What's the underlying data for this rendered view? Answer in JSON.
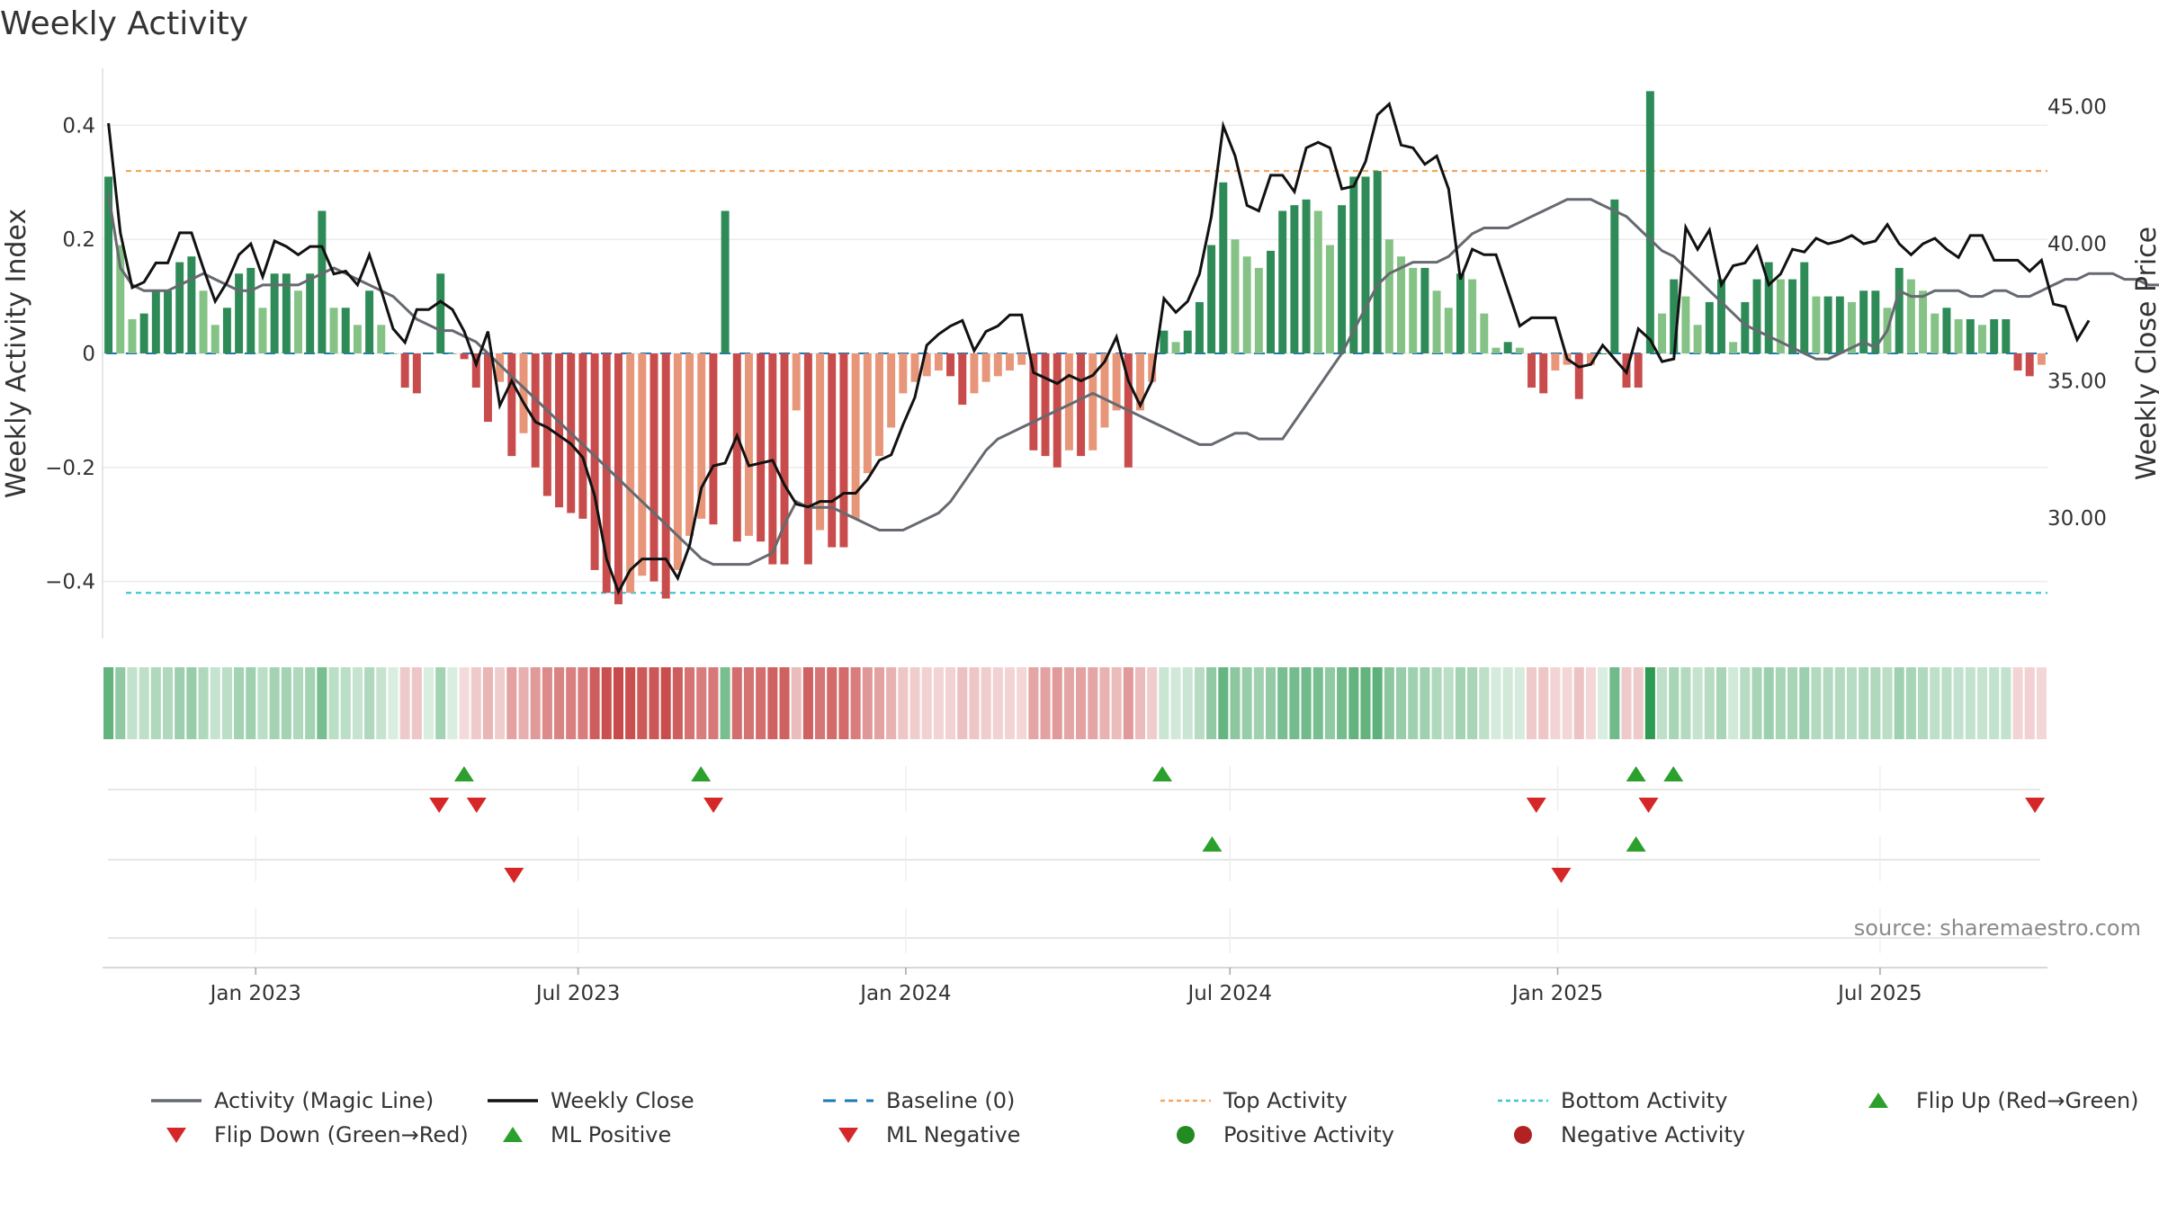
{
  "title": "Weekly Activity",
  "source": "source: sharemaestro.com",
  "chart_data": {
    "type": "bar",
    "title": "Weekly Activity",
    "ylabel": "Weekly Activity Index",
    "y2label": "Weekly Close Price",
    "ylim": [
      -0.5,
      0.5
    ],
    "y2lim": [
      25.6,
      46.4
    ],
    "yticks": [
      0.4,
      0.2,
      0,
      -0.2,
      -0.4
    ],
    "ytick_labels": [
      "0.4",
      "0.2",
      "0",
      "−0.2",
      "−0.4"
    ],
    "y2ticks": [
      45,
      40,
      35,
      30
    ],
    "y2tick_labels": [
      "45.00",
      "40.00",
      "35.00",
      "30.00"
    ],
    "x_start": "2022-10-07",
    "x_end": "2025-10-03",
    "xticks": [
      "2023-01-01",
      "2023-07-01",
      "2024-01-01",
      "2024-07-01",
      "2025-01-01",
      "2025-07-01"
    ],
    "xtick_labels": [
      "Jan 2023",
      "Jul 2023",
      "Jan 2024",
      "Jul 2024",
      "Jan 2025",
      "Jul 2025"
    ],
    "top_activity": 0.32,
    "bottom_activity": -0.42,
    "grid": true,
    "legend_position": "bottom",
    "series": [
      {
        "name": "Activity (Magic Line)",
        "color": "#666a70",
        "values": [
          0.28,
          0.15,
          0.12,
          0.11,
          0.11,
          0.11,
          0.12,
          0.13,
          0.14,
          0.13,
          0.12,
          0.11,
          0.11,
          0.12,
          0.12,
          0.12,
          0.12,
          0.13,
          0.14,
          0.15,
          0.14,
          0.13,
          0.12,
          0.11,
          0.1,
          0.08,
          0.06,
          0.05,
          0.04,
          0.04,
          0.03,
          0.02,
          0.0,
          -0.02,
          -0.04,
          -0.06,
          -0.08,
          -0.1,
          -0.12,
          -0.14,
          -0.16,
          -0.18,
          -0.2,
          -0.22,
          -0.24,
          -0.26,
          -0.28,
          -0.3,
          -0.32,
          -0.34,
          -0.36,
          -0.37,
          -0.37,
          -0.37,
          -0.37,
          -0.36,
          -0.35,
          -0.3,
          -0.26,
          -0.27,
          -0.27,
          -0.27,
          -0.28,
          -0.29,
          -0.3,
          -0.31,
          -0.31,
          -0.31,
          -0.3,
          -0.29,
          -0.28,
          -0.26,
          -0.23,
          -0.2,
          -0.17,
          -0.15,
          -0.14,
          -0.13,
          -0.12,
          -0.11,
          -0.1,
          -0.09,
          -0.08,
          -0.07,
          -0.08,
          -0.09,
          -0.1,
          -0.11,
          -0.12,
          -0.13,
          -0.14,
          -0.15,
          -0.16,
          -0.16,
          -0.15,
          -0.14,
          -0.14,
          -0.15,
          -0.15,
          -0.15,
          -0.12,
          -0.09,
          -0.06,
          -0.03,
          0.0,
          0.04,
          0.08,
          0.12,
          0.14,
          0.15,
          0.16,
          0.16,
          0.16,
          0.17,
          0.19,
          0.21,
          0.22,
          0.22,
          0.22,
          0.23,
          0.24,
          0.25,
          0.26,
          0.27,
          0.27,
          0.27,
          0.26,
          0.25,
          0.24,
          0.22,
          0.2,
          0.18,
          0.17,
          0.15,
          0.13,
          0.11,
          0.09,
          0.07,
          0.05,
          0.04,
          0.03,
          0.02,
          0.01,
          0.0,
          -0.01,
          -0.01,
          0.0,
          0.01,
          0.02,
          0.01,
          0.04,
          0.11,
          0.1,
          0.1,
          0.11,
          0.11,
          0.11,
          0.1,
          0.1,
          0.11,
          0.11,
          0.1,
          0.1,
          0.11,
          0.12,
          0.13,
          0.13,
          0.14,
          0.14,
          0.14,
          0.13,
          0.13,
          0.12,
          0.12,
          0.12,
          0.12,
          0.11,
          0.1,
          0.09,
          0.08,
          0.07,
          0.07,
          0.06,
          0.04,
          0.03,
          0.02
        ]
      },
      {
        "name": "Weekly Close",
        "color": "#111111",
        "values": [
          44.4,
          40.4,
          38.4,
          38.6,
          39.3,
          39.3,
          40.4,
          40.4,
          39.1,
          37.9,
          38.6,
          39.6,
          40.0,
          38.8,
          40.1,
          39.9,
          39.6,
          39.9,
          39.9,
          38.9,
          39.0,
          38.5,
          39.6,
          38.3,
          36.9,
          36.4,
          37.6,
          37.6,
          37.9,
          37.6,
          36.8,
          35.6,
          36.8,
          34.1,
          35.0,
          34.2,
          33.5,
          33.3,
          33.0,
          32.7,
          32.2,
          30.8,
          28.5,
          27.3,
          28.1,
          28.5,
          28.5,
          28.5,
          27.8,
          29.0,
          31.1,
          31.9,
          32.0,
          33.0,
          31.9,
          32.0,
          32.1,
          31.2,
          30.5,
          30.4,
          30.6,
          30.6,
          30.9,
          30.9,
          31.4,
          32.1,
          32.3,
          33.4,
          34.4,
          36.3,
          36.7,
          37.0,
          37.2,
          36.1,
          36.8,
          37.0,
          37.4,
          37.4,
          35.3,
          35.1,
          34.9,
          35.2,
          35.0,
          35.2,
          35.7,
          36.6,
          35.0,
          34.1,
          35.0,
          38.0,
          37.5,
          37.9,
          38.9,
          41.0,
          44.3,
          43.2,
          41.4,
          41.2,
          42.5,
          42.5,
          41.9,
          43.5,
          43.7,
          43.5,
          42.0,
          42.1,
          43.0,
          44.7,
          45.1,
          43.6,
          43.5,
          42.9,
          43.2,
          42.0,
          38.7,
          39.8,
          39.6,
          39.6,
          38.3,
          37.0,
          37.3,
          37.3,
          37.3,
          35.8,
          35.5,
          35.6,
          36.3,
          35.8,
          35.3,
          36.9,
          36.5,
          35.7,
          35.8,
          40.6,
          39.8,
          40.5,
          38.5,
          39.2,
          39.3,
          39.9,
          38.5,
          38.9,
          39.8,
          39.7,
          40.2,
          40.0,
          40.1,
          40.3,
          40.0,
          40.1,
          40.7,
          40.0,
          39.6,
          40.0,
          40.2,
          39.8,
          39.5,
          40.3,
          40.3,
          39.4,
          39.4,
          39.4,
          39.0,
          39.4,
          37.8,
          37.7,
          36.5,
          37.2
        ]
      },
      {
        "name": "Baseline (0)",
        "color": "#1f77b4",
        "values": [
          0
        ]
      },
      {
        "name": "Top Activity",
        "color": "#f0a868",
        "values": [
          0.32
        ]
      },
      {
        "name": "Bottom Activity",
        "color": "#3cc7d3",
        "values": [
          -0.42
        ]
      }
    ],
    "bars": {
      "name": "Weekly Activity Index",
      "values": [
        0.31,
        0.19,
        0.06,
        0.07,
        0.11,
        0.11,
        0.16,
        0.17,
        0.11,
        0.05,
        0.08,
        0.14,
        0.15,
        0.08,
        0.14,
        0.14,
        0.11,
        0.14,
        0.25,
        0.08,
        0.08,
        0.05,
        0.11,
        0.05,
        0.0,
        -0.06,
        -0.07,
        0.0,
        0.14,
        0.0,
        -0.01,
        -0.06,
        -0.12,
        -0.05,
        -0.18,
        -0.14,
        -0.2,
        -0.25,
        -0.27,
        -0.28,
        -0.29,
        -0.38,
        -0.42,
        -0.44,
        -0.42,
        -0.39,
        -0.4,
        -0.43,
        -0.38,
        -0.32,
        -0.29,
        -0.3,
        0.25,
        -0.33,
        -0.32,
        -0.33,
        -0.37,
        -0.37,
        -0.1,
        -0.37,
        -0.31,
        -0.34,
        -0.34,
        -0.29,
        -0.21,
        -0.18,
        -0.13,
        -0.07,
        -0.05,
        -0.04,
        -0.03,
        -0.04,
        -0.09,
        -0.07,
        -0.05,
        -0.04,
        -0.03,
        -0.02,
        -0.17,
        -0.18,
        -0.2,
        -0.17,
        -0.18,
        -0.17,
        -0.13,
        -0.1,
        -0.2,
        -0.1,
        -0.05,
        0.04,
        0.02,
        0.04,
        0.09,
        0.19,
        0.3,
        0.2,
        0.17,
        0.15,
        0.18,
        0.25,
        0.26,
        0.27,
        0.25,
        0.19,
        0.26,
        0.31,
        0.31,
        0.32,
        0.2,
        0.17,
        0.15,
        0.15,
        0.11,
        0.08,
        0.14,
        0.13,
        0.07,
        0.01,
        0.02,
        0.01,
        -0.06,
        -0.07,
        -0.03,
        -0.02,
        -0.08,
        -0.02,
        0.0,
        0.27,
        -0.06,
        -0.06,
        0.46,
        0.07,
        0.13,
        0.1,
        0.05,
        0.09,
        0.13,
        0.02,
        0.09,
        0.13,
        0.16,
        0.13,
        0.13,
        0.16,
        0.1,
        0.1,
        0.1,
        0.09,
        0.11,
        0.11,
        0.08,
        0.15,
        0.13,
        0.11,
        0.07,
        0.08,
        0.06,
        0.06,
        0.05,
        0.06,
        0.06,
        -0.03,
        -0.04,
        -0.02
      ]
    },
    "activity_strip": {
      "name": "Weekly Activity Index"
    },
    "signals": {
      "flip_up": [
        "2023-04-28",
        "2023-09-08",
        "2024-05-24",
        "2025-02-14",
        "2025-03-07"
      ],
      "flip_down": [
        "2023-04-14",
        "2023-05-05",
        "2023-09-15",
        "2024-12-20",
        "2025-02-21",
        "2025-09-26"
      ],
      "ml_positive": [
        "2024-06-21",
        "2025-02-14"
      ],
      "ml_negative": [
        "2023-05-26",
        "2025-01-03"
      ],
      "positive_activity": [],
      "negative_activity": []
    },
    "legend": [
      {
        "label": "Activity (Magic Line)",
        "kind": "line",
        "color": "#666a70"
      },
      {
        "label": "Weekly Close",
        "kind": "line",
        "color": "#111111"
      },
      {
        "label": "Baseline (0)",
        "kind": "dash",
        "color": "#1f77b4"
      },
      {
        "label": "Top Activity",
        "kind": "dot",
        "color": "#f0a868"
      },
      {
        "label": "Bottom Activity",
        "kind": "dot",
        "color": "#3cc7d3"
      },
      {
        "label": "Flip Up (Red→Green)",
        "kind": "tri-up",
        "color": "#2ca02c"
      },
      {
        "label": "Flip Down (Green→Red)",
        "kind": "tri-down",
        "color": "#d62728"
      },
      {
        "label": "ML Positive",
        "kind": "tri-up",
        "color": "#2ca02c"
      },
      {
        "label": "ML Negative",
        "kind": "tri-down",
        "color": "#d62728"
      },
      {
        "label": "Positive Activity",
        "kind": "circle",
        "color": "#228b22"
      },
      {
        "label": "Negative Activity",
        "kind": "circle",
        "color": "#b22222"
      }
    ]
  }
}
